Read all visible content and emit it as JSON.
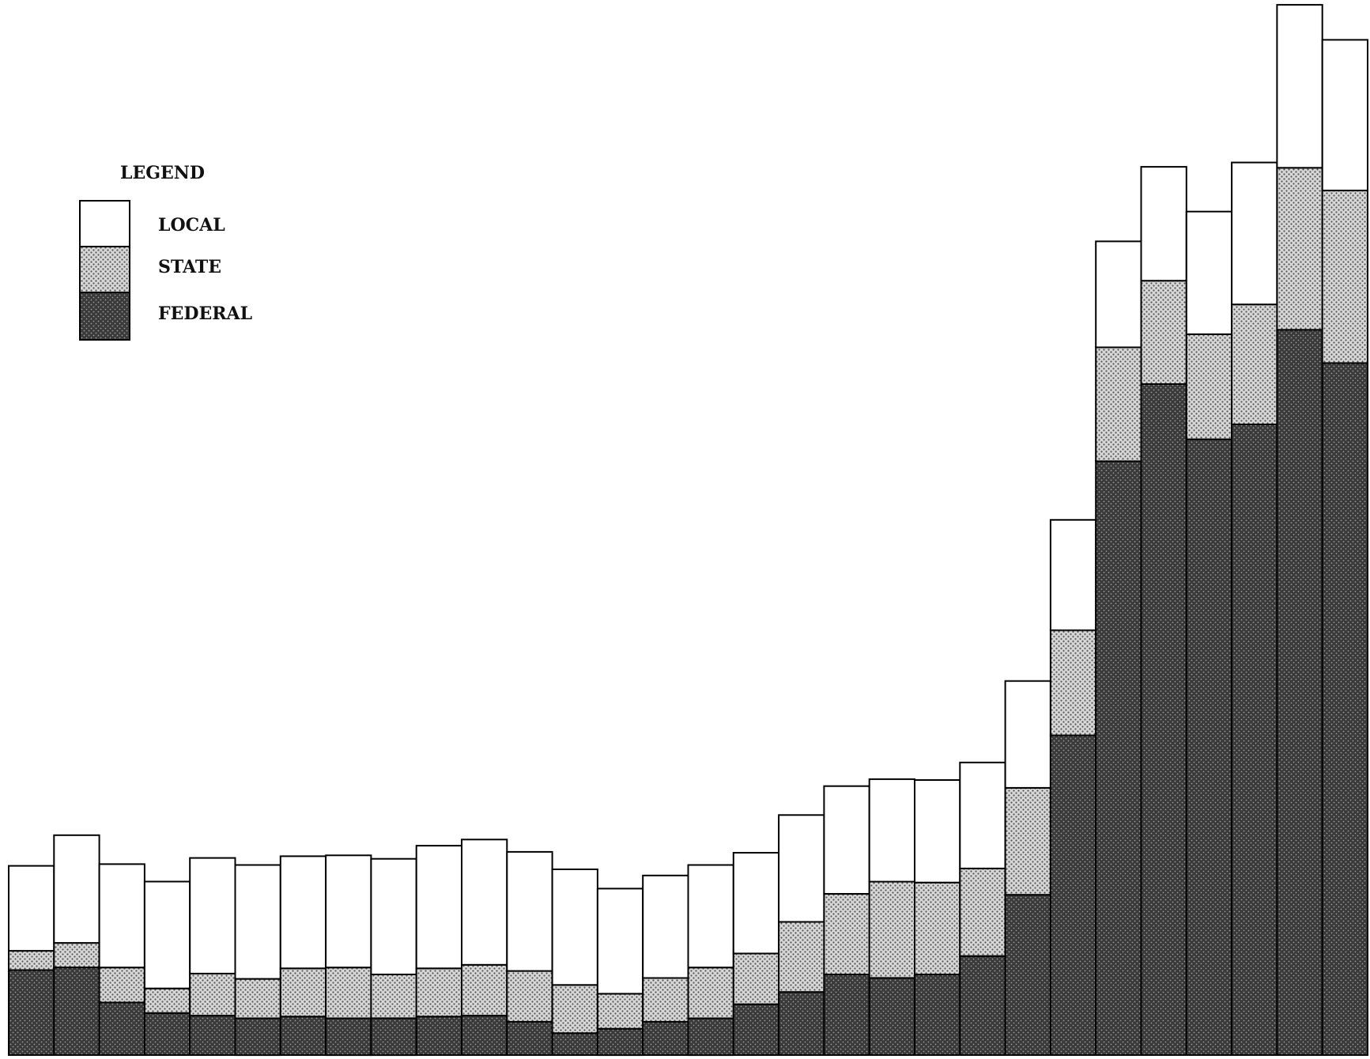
{
  "chart_data": {
    "type": "bar",
    "stacked": true,
    "title": "",
    "xlabel": "",
    "ylabel": "",
    "ylim": [
      0,
      1200
    ],
    "grid": false,
    "legend": {
      "title": "LEGEND",
      "placement": "top-left",
      "entries": [
        {
          "label": "LOCAL",
          "pattern": "white"
        },
        {
          "label": "STATE",
          "pattern": "light-dots"
        },
        {
          "label": "FEDERAL",
          "pattern": "dark-dots"
        }
      ]
    },
    "series": [
      {
        "name": "FEDERAL",
        "values": [
          97,
          100,
          60,
          48,
          45,
          42,
          44,
          42,
          42,
          44,
          45,
          38,
          25,
          30,
          38,
          42,
          58,
          72,
          92,
          88,
          92,
          113,
          183,
          365,
          678,
          766,
          703,
          720,
          828,
          790
        ]
      },
      {
        "name": "STATE",
        "values": [
          22,
          28,
          40,
          28,
          48,
          45,
          55,
          58,
          50,
          55,
          58,
          58,
          55,
          40,
          50,
          58,
          58,
          80,
          92,
          110,
          105,
          100,
          122,
          120,
          130,
          118,
          120,
          137,
          185,
          197
        ]
      },
      {
        "name": "LOCAL",
        "values": [
          97,
          123,
          118,
          122,
          132,
          130,
          128,
          128,
          132,
          140,
          143,
          136,
          132,
          120,
          117,
          117,
          115,
          122,
          123,
          117,
          117,
          121,
          122,
          126,
          121,
          130,
          140,
          162,
          186,
          172
        ]
      }
    ],
    "colors": {
      "local": "#ffffff",
      "state_base": "#d6d6d6",
      "state_dot": "#555555",
      "federal_base": "#3a3a3a",
      "federal_dot": "#9a9a9a",
      "outline": "#000000"
    }
  }
}
